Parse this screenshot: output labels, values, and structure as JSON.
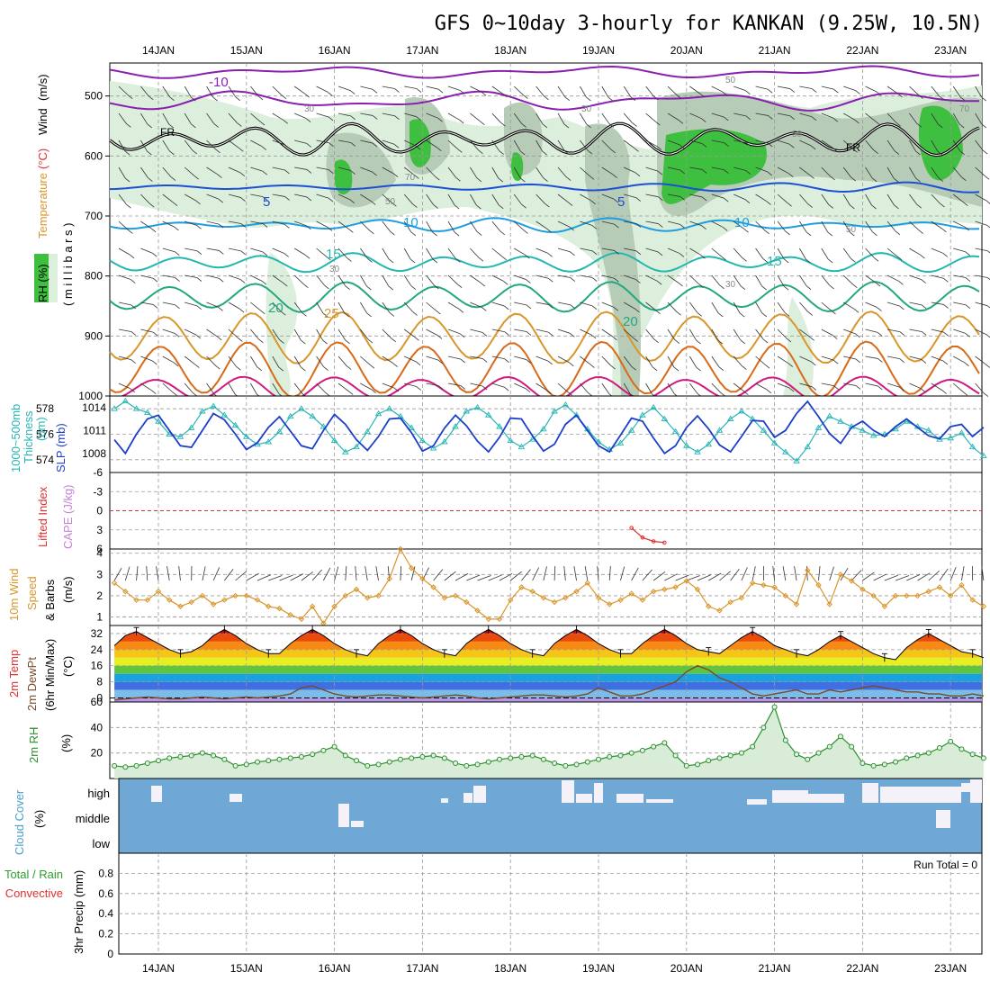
{
  "title": "GFS 0~10day 3-hourly for KANKAN (9.25W, 10.5N)",
  "dates": [
    "14JAN",
    "15JAN",
    "16JAN",
    "17JAN",
    "18JAN",
    "19JAN",
    "20JAN",
    "21JAN",
    "22JAN",
    "23JAN"
  ],
  "colors": {
    "rh_green": "#3fbf3f",
    "rh_light": "#dcefdc",
    "cloud": "#6fa8d4",
    "thick": "#2ab5b5",
    "slp": "#1c3fc9",
    "wind": "#d9962a",
    "rh2m": "#2c8f2c",
    "cape_red": "#e03030"
  },
  "panels": {
    "upper": {
      "labels": {
        "rh": "RH (%)",
        "temp": "Temperature",
        "tempunit": "(°C)",
        "wind": "Wind",
        "windunit": "(m/s)",
        "mb": "( m i l l i b a r s )"
      },
      "yticks": [
        "500",
        "600",
        "700",
        "800",
        "900",
        "1000"
      ],
      "contour_labels": {
        "m10": "-10",
        "fr": "FR",
        "p5": "5",
        "p10": "10",
        "p15": "15",
        "p20": "20",
        "p25": "25",
        "rh30": "30",
        "rh50": "50",
        "rh70": "70"
      }
    },
    "slp": {
      "labels": {
        "thick": "1000~500mb",
        "thick2": "Thickness",
        "thickunit": "(dm)",
        "slp": "SLP (mb)"
      },
      "thick_ticks": [
        "578",
        "576",
        "574"
      ],
      "slp_ticks": [
        "1014",
        "1011",
        "1008"
      ]
    },
    "cape": {
      "labels": {
        "li": "Lifted Index",
        "cape": "CAPE (J/kg)"
      },
      "yticks": [
        "-6",
        "-3",
        "0",
        "3",
        "6"
      ]
    },
    "wind10": {
      "labels": {
        "a": "10m Wind",
        "b": "Speed",
        "c": "& Barbs",
        "unit": "(m/s)"
      },
      "yticks": [
        "1",
        "2",
        "3",
        "4"
      ]
    },
    "temp2m": {
      "labels": {
        "a": "2m Temp",
        "b": "2m DewPt",
        "c": "(6hr Min/Max)",
        "unit": "(°C)"
      },
      "yticks": [
        "0",
        "8",
        "16",
        "24",
        "32"
      ]
    },
    "rh2m": {
      "labels": {
        "a": "2m RH",
        "unit": "(%)"
      },
      "yticks": [
        "20",
        "40",
        "60"
      ]
    },
    "cloud": {
      "labels": {
        "a": "Cloud Cover",
        "unit": "(%)"
      },
      "levels": [
        "high",
        "middle",
        "low"
      ]
    },
    "precip": {
      "labels": {
        "a": "Total / Rain",
        "b": "Convective",
        "c": "3hr Precip (mm)"
      },
      "yticks": [
        "0",
        "0.2",
        "0.4",
        "0.6",
        "0.8"
      ],
      "run_total": "Run Total = 0"
    }
  },
  "chart_data": [
    {
      "type": "line",
      "title": "1000~500mb Thickness",
      "ylabel": "(dm)",
      "ylim": [
        573,
        579
      ],
      "x": [
        "13JAN12",
        "13JAN15",
        "13JAN18",
        "13JAN21",
        "14JAN00",
        "14JAN03",
        "14JAN06",
        "14JAN09",
        "14JAN12",
        "14JAN15",
        "14JAN18",
        "14JAN21",
        "15JAN00",
        "15JAN03",
        "15JAN06",
        "15JAN09",
        "15JAN12",
        "15JAN15",
        "15JAN18",
        "15JAN21",
        "16JAN00",
        "16JAN03",
        "16JAN06",
        "16JAN09",
        "16JAN12",
        "16JAN15",
        "16JAN18",
        "16JAN21",
        "17JAN00",
        "17JAN03",
        "17JAN06",
        "17JAN09",
        "17JAN12",
        "17JAN15",
        "17JAN18",
        "17JAN21",
        "18JAN00",
        "18JAN03",
        "18JAN06",
        "18JAN09",
        "18JAN12",
        "18JAN15",
        "18JAN18",
        "18JAN21",
        "19JAN00",
        "19JAN03",
        "19JAN06",
        "19JAN09",
        "19JAN12",
        "19JAN15",
        "19JAN18",
        "19JAN21",
        "20JAN00",
        "20JAN03",
        "20JAN06",
        "20JAN09",
        "20JAN12",
        "20JAN15",
        "20JAN18",
        "20JAN21",
        "21JAN00",
        "21JAN03",
        "21JAN06",
        "21JAN09",
        "21JAN12",
        "21JAN15",
        "21JAN18",
        "21JAN21",
        "22JAN00",
        "22JAN03",
        "22JAN06",
        "22JAN09",
        "22JAN12",
        "22JAN15",
        "22JAN18",
        "22JAN21",
        "23JAN00",
        "23JAN03",
        "23JAN06",
        "23JAN09"
      ],
      "values": [
        578,
        578.6,
        578,
        577.7,
        577,
        576,
        575.8,
        576.5,
        577.8,
        578.2,
        577.5,
        576.7,
        575.8,
        575.2,
        575.4,
        576.2,
        577.4,
        578,
        577.4,
        576.6,
        575.5,
        574.6,
        575,
        576.2,
        577.6,
        578,
        577.4,
        576.5,
        575.5,
        574.9,
        575.4,
        576.6,
        577.8,
        578.1,
        577.5,
        576.6,
        575.5,
        575,
        575.6,
        576.4,
        577.8,
        578.3,
        577.5,
        576.4,
        575.4,
        574.8,
        575.3,
        576.3,
        577.5,
        578.1,
        577.2,
        576.2,
        575.1,
        574.6,
        575.2,
        576.3,
        577.2,
        577.8,
        577.2,
        576.3,
        575.3,
        574.6,
        573.9,
        575,
        576.5,
        577.4,
        577,
        576.6,
        576.3,
        575.9,
        576,
        576.4,
        577,
        576.6,
        576.3,
        575.6,
        575.7,
        576.1,
        575,
        574.3
      ]
    },
    {
      "type": "line",
      "title": "SLP",
      "ylabel": "(mb)",
      "ylim": [
        1005.5,
        1015.5
      ],
      "values": [
        1009.8,
        1008,
        1010.5,
        1012.5,
        1013,
        1011,
        1009,
        1008.8,
        1011,
        1013.2,
        1012.4,
        1010.5,
        1008.5,
        1009.4,
        1011.4,
        1012.8,
        1010.9,
        1009,
        1008.6,
        1011,
        1013.1,
        1011.8,
        1009.8,
        1008.4,
        1010.2,
        1012.5,
        1012.6,
        1010.7,
        1008.3,
        1009,
        1011.3,
        1013,
        1011.6,
        1009.6,
        1008.2,
        1010.1,
        1012.6,
        1012.5,
        1010.3,
        1008.3,
        1009.2,
        1011.8,
        1013,
        1011,
        1009,
        1008.2,
        1010.4,
        1012.6,
        1012.2,
        1010,
        1008,
        1009,
        1011.4,
        1012.9,
        1011.2,
        1009.1,
        1008.2,
        1010.2,
        1012.3,
        1012.2,
        1010.1,
        1011,
        1013.2,
        1014.8,
        1012.8,
        1010.6,
        1009.3,
        1011.4,
        1012.2,
        1011,
        1010.2,
        1011.5,
        1012.5,
        1011.4,
        1010.3,
        1009.9,
        1011.5,
        1011.8,
        1010.2,
        1011.4
      ]
    },
    {
      "type": "line",
      "title": "Lifted Index",
      "ylim": [
        -6,
        6
      ],
      "x": [
        "19JAN09",
        "19JAN12",
        "19JAN15",
        "19JAN18"
      ],
      "values": [
        2.7,
        4.2,
        4.8,
        5
      ]
    },
    {
      "type": "line",
      "title": "10m Wind Speed",
      "ylabel": "(m/s)",
      "ylim": [
        0.6,
        4.2
      ],
      "values": [
        2.6,
        2.2,
        1.8,
        1.8,
        2.2,
        1.8,
        1.5,
        1.7,
        2,
        1.6,
        1.8,
        2,
        2,
        1.8,
        1.5,
        1.4,
        1.1,
        0.9,
        1.5,
        0.7,
        1.5,
        2,
        2.3,
        1.9,
        2,
        2.8,
        4.2,
        3.3,
        2.8,
        2.4,
        1.9,
        2,
        1.7,
        1.3,
        0.9,
        0.9,
        1.8,
        2.4,
        2.2,
        1.9,
        1.7,
        1.9,
        2.2,
        2.6,
        1.9,
        1.6,
        1.8,
        2.1,
        1.8,
        2.2,
        2.3,
        2.4,
        2.7,
        2.3,
        1.5,
        1.3,
        1.7,
        1.9,
        2.6,
        2.5,
        2.4,
        2,
        1.6,
        3.2,
        2.5,
        1.6,
        3,
        2.7,
        2.3,
        2,
        1.5,
        2,
        2,
        2,
        2.2,
        2.4,
        2,
        2.5,
        1.8,
        1.5
      ]
    },
    {
      "type": "area",
      "title": "2m Temp",
      "ylabel": "(°C)",
      "ylim": [
        -2,
        36
      ],
      "values": [
        26,
        31,
        33,
        30,
        27,
        24,
        22,
        23,
        26,
        31,
        34,
        31,
        27,
        24,
        22,
        22,
        27,
        31,
        34,
        31,
        27,
        24,
        22,
        21,
        27,
        31,
        34,
        31,
        27,
        24,
        22,
        21,
        27,
        31,
        34,
        31,
        27,
        24,
        22,
        21,
        27,
        31,
        34,
        31,
        27,
        24,
        22,
        22,
        27,
        31,
        34,
        31,
        27,
        24,
        23,
        22,
        26,
        30,
        33,
        30,
        26,
        24,
        22,
        21,
        24,
        28,
        31,
        28,
        25,
        22,
        20,
        19,
        25,
        29,
        32,
        29,
        26,
        23,
        22,
        20
      ]
    },
    {
      "type": "line",
      "title": "2m DewPt",
      "ylabel": "(°C)",
      "ylim": [
        -2,
        36
      ],
      "values": [
        -1,
        -0.5,
        0,
        0.5,
        0,
        -0.5,
        -0.5,
        0,
        0.5,
        0,
        -0.5,
        0,
        0.5,
        0,
        0.5,
        1,
        2,
        5,
        6,
        4,
        2,
        1,
        0.5,
        1,
        1.5,
        1.5,
        1,
        0.5,
        0,
        0.5,
        1,
        1.5,
        1,
        0,
        -0.5,
        0,
        0.5,
        1,
        1.5,
        1.5,
        1,
        0.5,
        1,
        2,
        5,
        3,
        1,
        1,
        2,
        4,
        6,
        8,
        13,
        16,
        14,
        10,
        8,
        5,
        2,
        1,
        2,
        3,
        4,
        2,
        2,
        4,
        3,
        4,
        5,
        6,
        5,
        4,
        3,
        3,
        2,
        2,
        1,
        1,
        2,
        1
      ]
    },
    {
      "type": "area",
      "title": "2m RH",
      "ylabel": "(%)",
      "ylim": [
        0,
        60
      ],
      "values": [
        10,
        9,
        10,
        12,
        14,
        16,
        17,
        18,
        20,
        18,
        15,
        10,
        11,
        13,
        14,
        15,
        16,
        17,
        19,
        22,
        25,
        18,
        14,
        10,
        11,
        13,
        15,
        16,
        17,
        18,
        16,
        12,
        10,
        11,
        13,
        15,
        16,
        17,
        18,
        15,
        12,
        10,
        11,
        13,
        15,
        17,
        18,
        20,
        22,
        25,
        28,
        18,
        10,
        11,
        14,
        16,
        18,
        20,
        25,
        40,
        56,
        30,
        19,
        15,
        20,
        25,
        33,
        25,
        12,
        10,
        11,
        13,
        16,
        18,
        20,
        24,
        29,
        23,
        19,
        16
      ]
    },
    {
      "type": "bar",
      "title": "3hr Precip",
      "ylabel": "3hr Precip (mm)",
      "ylim": [
        0,
        1
      ],
      "values": [
        0
      ]
    }
  ]
}
